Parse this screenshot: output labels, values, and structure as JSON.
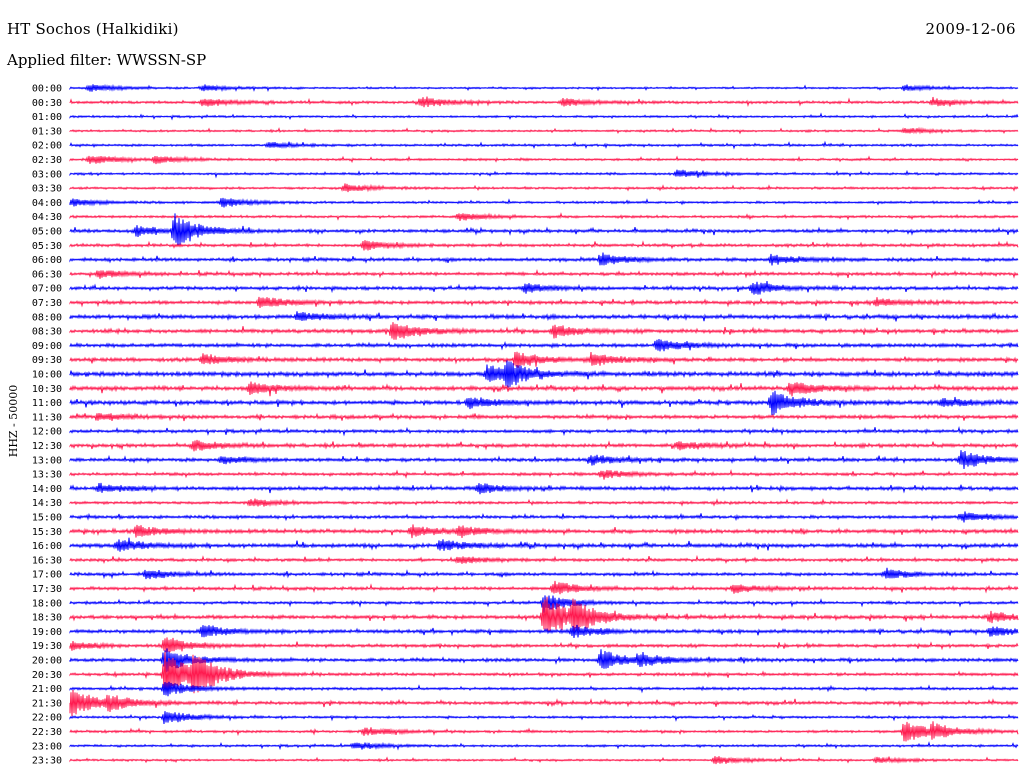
{
  "header": {
    "station": "HT Sochos (Halkidiki)",
    "date": "2009-12-06",
    "filter": "Applied filter: WWSSN-SP"
  },
  "channel_label": "HHZ - 50000",
  "colors": {
    "trace_a": "#0000ff",
    "trace_b": "#ff1a4f",
    "text": "#000000",
    "background": "#ffffff"
  },
  "chart_data": {
    "type": "line",
    "title": "HT Sochos (Halkidiki)",
    "subtitle": "Applied filter: WWSSN-SP",
    "date": "2009-12-06",
    "ylabel": "HHZ - 50000",
    "row_interval_minutes": 30,
    "trace_colors_alternate": [
      "#0000ff",
      "#ff1a4f"
    ],
    "rows": [
      {
        "label": "00:00",
        "noise": 0.8,
        "events": [
          {
            "t": 0.02,
            "amp": 4
          },
          {
            "t": 0.14,
            "amp": 3
          },
          {
            "t": 0.88,
            "amp": 3
          }
        ]
      },
      {
        "label": "00:30",
        "noise": 1.2,
        "events": [
          {
            "t": 0.14,
            "amp": 4
          },
          {
            "t": 0.37,
            "amp": 5
          },
          {
            "t": 0.52,
            "amp": 4
          },
          {
            "t": 0.91,
            "amp": 4
          }
        ]
      },
      {
        "label": "01:00",
        "noise": 0.9,
        "events": []
      },
      {
        "label": "01:30",
        "noise": 0.9,
        "events": [
          {
            "t": 0.88,
            "amp": 3
          }
        ]
      },
      {
        "label": "02:00",
        "noise": 1.0,
        "events": [
          {
            "t": 0.21,
            "amp": 3
          }
        ]
      },
      {
        "label": "02:30",
        "noise": 1.0,
        "events": [
          {
            "t": 0.02,
            "amp": 5
          },
          {
            "t": 0.09,
            "amp": 4
          }
        ]
      },
      {
        "label": "03:00",
        "noise": 1.0,
        "events": [
          {
            "t": 0.64,
            "amp": 4
          }
        ]
      },
      {
        "label": "03:30",
        "noise": 1.0,
        "events": [
          {
            "t": 0.29,
            "amp": 4
          }
        ]
      },
      {
        "label": "04:00",
        "noise": 1.0,
        "events": [
          {
            "t": 0.0,
            "amp": 4
          },
          {
            "t": 0.16,
            "amp": 5
          }
        ]
      },
      {
        "label": "04:30",
        "noise": 1.1,
        "events": [
          {
            "t": 0.41,
            "amp": 4
          }
        ]
      },
      {
        "label": "05:00",
        "noise": 1.4,
        "events": [
          {
            "t": 0.07,
            "amp": 5
          },
          {
            "t": 0.11,
            "amp": 16
          }
        ]
      },
      {
        "label": "05:30",
        "noise": 1.3,
        "events": [
          {
            "t": 0.31,
            "amp": 5
          }
        ]
      },
      {
        "label": "06:00",
        "noise": 1.5,
        "events": [
          {
            "t": 0.56,
            "amp": 6
          },
          {
            "t": 0.74,
            "amp": 5
          }
        ]
      },
      {
        "label": "06:30",
        "noise": 1.4,
        "events": [
          {
            "t": 0.03,
            "amp": 4
          }
        ]
      },
      {
        "label": "07:00",
        "noise": 1.5,
        "events": [
          {
            "t": 0.48,
            "amp": 5
          },
          {
            "t": 0.72,
            "amp": 7
          }
        ]
      },
      {
        "label": "07:30",
        "noise": 1.5,
        "events": [
          {
            "t": 0.2,
            "amp": 7
          },
          {
            "t": 0.85,
            "amp": 4
          }
        ]
      },
      {
        "label": "08:00",
        "noise": 1.8,
        "events": [
          {
            "t": 0.24,
            "amp": 5
          }
        ]
      },
      {
        "label": "08:30",
        "noise": 1.7,
        "events": [
          {
            "t": 0.34,
            "amp": 10
          },
          {
            "t": 0.51,
            "amp": 6
          }
        ]
      },
      {
        "label": "09:00",
        "noise": 1.6,
        "events": [
          {
            "t": 0.62,
            "amp": 6
          }
        ]
      },
      {
        "label": "09:30",
        "noise": 1.7,
        "events": [
          {
            "t": 0.14,
            "amp": 5
          },
          {
            "t": 0.47,
            "amp": 8
          },
          {
            "t": 0.55,
            "amp": 6
          }
        ]
      },
      {
        "label": "10:00",
        "noise": 2.0,
        "events": [
          {
            "t": 0.44,
            "amp": 9
          },
          {
            "t": 0.46,
            "amp": 10
          }
        ]
      },
      {
        "label": "10:30",
        "noise": 1.8,
        "events": [
          {
            "t": 0.19,
            "amp": 6
          },
          {
            "t": 0.76,
            "amp": 8
          }
        ]
      },
      {
        "label": "11:00",
        "noise": 1.8,
        "events": [
          {
            "t": 0.42,
            "amp": 6
          },
          {
            "t": 0.74,
            "amp": 12
          },
          {
            "t": 0.92,
            "amp": 4
          }
        ]
      },
      {
        "label": "11:30",
        "noise": 1.6,
        "events": [
          {
            "t": 0.03,
            "amp": 4
          }
        ]
      },
      {
        "label": "12:00",
        "noise": 1.4,
        "events": []
      },
      {
        "label": "12:30",
        "noise": 1.6,
        "events": [
          {
            "t": 0.13,
            "amp": 5
          },
          {
            "t": 0.64,
            "amp": 4
          }
        ]
      },
      {
        "label": "13:00",
        "noise": 1.5,
        "events": [
          {
            "t": 0.16,
            "amp": 4
          },
          {
            "t": 0.55,
            "amp": 5
          },
          {
            "t": 0.94,
            "amp": 9
          }
        ]
      },
      {
        "label": "13:30",
        "noise": 1.3,
        "events": [
          {
            "t": 0.56,
            "amp": 5
          }
        ]
      },
      {
        "label": "14:00",
        "noise": 1.6,
        "events": [
          {
            "t": 0.03,
            "amp": 5
          },
          {
            "t": 0.43,
            "amp": 5
          }
        ]
      },
      {
        "label": "14:30",
        "noise": 1.2,
        "events": [
          {
            "t": 0.19,
            "amp": 4
          }
        ]
      },
      {
        "label": "15:00",
        "noise": 1.4,
        "events": [
          {
            "t": 0.94,
            "amp": 5
          }
        ]
      },
      {
        "label": "15:30",
        "noise": 1.7,
        "events": [
          {
            "t": 0.07,
            "amp": 6
          },
          {
            "t": 0.36,
            "amp": 6
          },
          {
            "t": 0.41,
            "amp": 5
          }
        ]
      },
      {
        "label": "16:00",
        "noise": 1.7,
        "events": [
          {
            "t": 0.05,
            "amp": 6
          },
          {
            "t": 0.39,
            "amp": 6
          }
        ]
      },
      {
        "label": "16:30",
        "noise": 1.3,
        "events": [
          {
            "t": 0.41,
            "amp": 4
          }
        ]
      },
      {
        "label": "17:00",
        "noise": 1.4,
        "events": [
          {
            "t": 0.08,
            "amp": 5
          },
          {
            "t": 0.86,
            "amp": 5
          }
        ]
      },
      {
        "label": "17:30",
        "noise": 1.4,
        "events": [
          {
            "t": 0.51,
            "amp": 7
          },
          {
            "t": 0.7,
            "amp": 4
          }
        ]
      },
      {
        "label": "18:00",
        "noise": 1.2,
        "events": [
          {
            "t": 0.5,
            "amp": 9
          }
        ]
      },
      {
        "label": "18:30",
        "noise": 1.6,
        "events": [
          {
            "t": 0.5,
            "amp": 22
          },
          {
            "t": 0.53,
            "amp": 12
          },
          {
            "t": 0.97,
            "amp": 5
          }
        ]
      },
      {
        "label": "19:00",
        "noise": 1.6,
        "events": [
          {
            "t": 0.14,
            "amp": 6
          },
          {
            "t": 0.53,
            "amp": 6
          },
          {
            "t": 0.97,
            "amp": 5
          }
        ]
      },
      {
        "label": "19:30",
        "noise": 1.4,
        "events": [
          {
            "t": 0.0,
            "amp": 4
          },
          {
            "t": 0.1,
            "amp": 9
          }
        ]
      },
      {
        "label": "20:00",
        "noise": 1.5,
        "events": [
          {
            "t": 0.1,
            "amp": 12
          },
          {
            "t": 0.56,
            "amp": 10
          },
          {
            "t": 0.6,
            "amp": 6
          }
        ]
      },
      {
        "label": "20:30",
        "noise": 1.3,
        "events": [
          {
            "t": 0.1,
            "amp": 24
          },
          {
            "t": 0.13,
            "amp": 18
          }
        ]
      },
      {
        "label": "21:00",
        "noise": 1.2,
        "events": [
          {
            "t": 0.1,
            "amp": 8
          }
        ]
      },
      {
        "label": "21:30",
        "noise": 1.4,
        "events": [
          {
            "t": 0.0,
            "amp": 14
          },
          {
            "t": 0.04,
            "amp": 6
          }
        ]
      },
      {
        "label": "22:00",
        "noise": 1.0,
        "events": [
          {
            "t": 0.1,
            "amp": 7
          }
        ]
      },
      {
        "label": "22:30",
        "noise": 1.1,
        "events": [
          {
            "t": 0.31,
            "amp": 4
          },
          {
            "t": 0.88,
            "amp": 11
          },
          {
            "t": 0.91,
            "amp": 6
          }
        ]
      },
      {
        "label": "23:00",
        "noise": 1.0,
        "events": [
          {
            "t": 0.3,
            "amp": 4
          }
        ]
      },
      {
        "label": "23:30",
        "noise": 0.9,
        "events": [
          {
            "t": 0.68,
            "amp": 4
          },
          {
            "t": 0.85,
            "amp": 3
          }
        ]
      }
    ]
  }
}
